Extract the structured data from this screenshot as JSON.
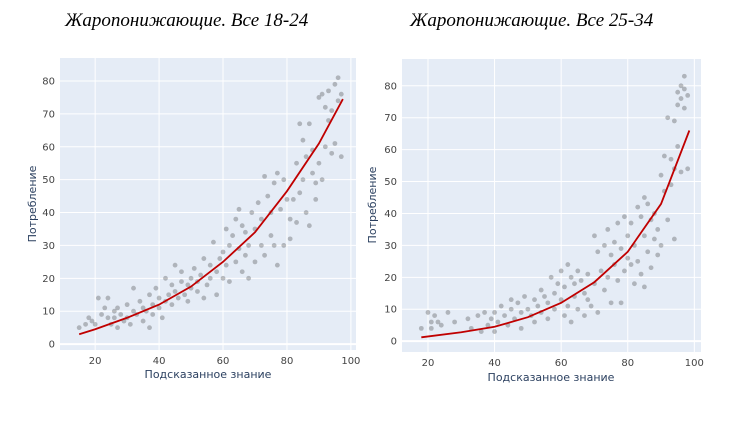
{
  "chart_data": [
    {
      "type": "scatter",
      "title": "Жаропонижающие. Все 18-24",
      "xlabel": "Подсказанное знание",
      "ylabel": "Потребление",
      "xlim": [
        9,
        101.6
      ],
      "ylim": [
        -1.8,
        87
      ],
      "xticks": [
        20,
        40,
        60,
        80,
        100
      ],
      "yticks": [
        0,
        10,
        20,
        30,
        40,
        50,
        60,
        70,
        80
      ],
      "grid": true,
      "colors": {
        "points": "#333333",
        "fit": "#c00000",
        "background": "#e5ecf6"
      },
      "points": [
        [
          15,
          5
        ],
        [
          17,
          6
        ],
        [
          18,
          8
        ],
        [
          19,
          7
        ],
        [
          20,
          6
        ],
        [
          21,
          14
        ],
        [
          22,
          9
        ],
        [
          23,
          11
        ],
        [
          24,
          8
        ],
        [
          24,
          14
        ],
        [
          25,
          6
        ],
        [
          26,
          10
        ],
        [
          26,
          8
        ],
        [
          27,
          5
        ],
        [
          27,
          11
        ],
        [
          28,
          9
        ],
        [
          29,
          7
        ],
        [
          30,
          12
        ],
        [
          30,
          8
        ],
        [
          31,
          6
        ],
        [
          32,
          10
        ],
        [
          32,
          17
        ],
        [
          33,
          9
        ],
        [
          34,
          13
        ],
        [
          35,
          7
        ],
        [
          35,
          11
        ],
        [
          36,
          10
        ],
        [
          37,
          15
        ],
        [
          37,
          5
        ],
        [
          38,
          9
        ],
        [
          38,
          12
        ],
        [
          39,
          17
        ],
        [
          40,
          11
        ],
        [
          40,
          14
        ],
        [
          41,
          8
        ],
        [
          42,
          20
        ],
        [
          42,
          13
        ],
        [
          43,
          15
        ],
        [
          44,
          12
        ],
        [
          44,
          18
        ],
        [
          45,
          24
        ],
        [
          45,
          16
        ],
        [
          46,
          14
        ],
        [
          47,
          19
        ],
        [
          47,
          22
        ],
        [
          48,
          15
        ],
        [
          49,
          18
        ],
        [
          49,
          13
        ],
        [
          50,
          20
        ],
        [
          50,
          17
        ],
        [
          51,
          23
        ],
        [
          52,
          16
        ],
        [
          52,
          19
        ],
        [
          53,
          21
        ],
        [
          54,
          14
        ],
        [
          54,
          26
        ],
        [
          55,
          18
        ],
        [
          56,
          24
        ],
        [
          56,
          20
        ],
        [
          57,
          31
        ],
        [
          58,
          22
        ],
        [
          58,
          15
        ],
        [
          59,
          26
        ],
        [
          60,
          28
        ],
        [
          60,
          20
        ],
        [
          61,
          35
        ],
        [
          61,
          24
        ],
        [
          62,
          30
        ],
        [
          62,
          19
        ],
        [
          63,
          33
        ],
        [
          64,
          25
        ],
        [
          64,
          38
        ],
        [
          65,
          41
        ],
        [
          65,
          29
        ],
        [
          66,
          22
        ],
        [
          66,
          36
        ],
        [
          67,
          34
        ],
        [
          67,
          27
        ],
        [
          68,
          30
        ],
        [
          68,
          20
        ],
        [
          69,
          40
        ],
        [
          70,
          35
        ],
        [
          70,
          25
        ],
        [
          71,
          43
        ],
        [
          72,
          30
        ],
        [
          72,
          38
        ],
        [
          73,
          51
        ],
        [
          73,
          27
        ],
        [
          74,
          45
        ],
        [
          75,
          33
        ],
        [
          75,
          40
        ],
        [
          76,
          49
        ],
        [
          76,
          30
        ],
        [
          77,
          52
        ],
        [
          77,
          24
        ],
        [
          78,
          41
        ],
        [
          79,
          50
        ],
        [
          79,
          30
        ],
        [
          80,
          44
        ],
        [
          81,
          38
        ],
        [
          81,
          32
        ],
        [
          82,
          44
        ],
        [
          83,
          55
        ],
        [
          83,
          37
        ],
        [
          84,
          67
        ],
        [
          84,
          46
        ],
        [
          85,
          62
        ],
        [
          85,
          50
        ],
        [
          86,
          40
        ],
        [
          86,
          57
        ],
        [
          87,
          67
        ],
        [
          87,
          36
        ],
        [
          88,
          52
        ],
        [
          88,
          59
        ],
        [
          89,
          49
        ],
        [
          89,
          44
        ],
        [
          90,
          75
        ],
        [
          90,
          55
        ],
        [
          91,
          76
        ],
        [
          91,
          50
        ],
        [
          92,
          72
        ],
        [
          92,
          60
        ],
        [
          93,
          77
        ],
        [
          93,
          68
        ],
        [
          94,
          71
        ],
        [
          94,
          58
        ],
        [
          95,
          79
        ],
        [
          95,
          61
        ],
        [
          96,
          81
        ],
        [
          96,
          74
        ],
        [
          97,
          57
        ],
        [
          97,
          76
        ]
      ],
      "fit": [
        [
          15,
          3
        ],
        [
          20,
          4.5
        ],
        [
          30,
          8
        ],
        [
          40,
          12
        ],
        [
          50,
          17.5
        ],
        [
          60,
          25
        ],
        [
          70,
          34
        ],
        [
          80,
          46.5
        ],
        [
          90,
          61
        ],
        [
          97.5,
          74.5
        ]
      ]
    },
    {
      "type": "scatter",
      "title": "Жаропонижающие. Все 25-34",
      "xlabel": "Подсказанное знание",
      "ylabel": "Потребление",
      "xlim": [
        12.2,
        102
      ],
      "ylim": [
        -3.4,
        88.4
      ],
      "xticks": [
        20,
        40,
        60,
        80,
        100
      ],
      "yticks": [
        0,
        10,
        20,
        30,
        40,
        50,
        60,
        70,
        80
      ],
      "grid": true,
      "colors": {
        "points": "#333333",
        "fit": "#c00000",
        "background": "#e5ecf6"
      },
      "points": [
        [
          18,
          4
        ],
        [
          20,
          9
        ],
        [
          21,
          6
        ],
        [
          21,
          4
        ],
        [
          22,
          8
        ],
        [
          23,
          6
        ],
        [
          24,
          5
        ],
        [
          26,
          9
        ],
        [
          28,
          6
        ],
        [
          32,
          7
        ],
        [
          33,
          4
        ],
        [
          35,
          8
        ],
        [
          36,
          3
        ],
        [
          37,
          9
        ],
        [
          38,
          5
        ],
        [
          39,
          7
        ],
        [
          40,
          3
        ],
        [
          40,
          9
        ],
        [
          41,
          6
        ],
        [
          42,
          11
        ],
        [
          43,
          8
        ],
        [
          44,
          5
        ],
        [
          45,
          10
        ],
        [
          45,
          13
        ],
        [
          46,
          7
        ],
        [
          47,
          12
        ],
        [
          48,
          9
        ],
        [
          48,
          4
        ],
        [
          49,
          14
        ],
        [
          50,
          10
        ],
        [
          51,
          8
        ],
        [
          52,
          13
        ],
        [
          52,
          6
        ],
        [
          53,
          11
        ],
        [
          54,
          16
        ],
        [
          54,
          9
        ],
        [
          55,
          14
        ],
        [
          56,
          12
        ],
        [
          56,
          7
        ],
        [
          57,
          20
        ],
        [
          58,
          15
        ],
        [
          58,
          10
        ],
        [
          59,
          18
        ],
        [
          60,
          22
        ],
        [
          60,
          13
        ],
        [
          61,
          8
        ],
        [
          61,
          17
        ],
        [
          62,
          24
        ],
        [
          62,
          11
        ],
        [
          63,
          20
        ],
        [
          63,
          6
        ],
        [
          64,
          18
        ],
        [
          64,
          14
        ],
        [
          65,
          22
        ],
        [
          65,
          10
        ],
        [
          66,
          19
        ],
        [
          67,
          15
        ],
        [
          67,
          8
        ],
        [
          68,
          21
        ],
        [
          68,
          13
        ],
        [
          69,
          11
        ],
        [
          70,
          33
        ],
        [
          70,
          18
        ],
        [
          71,
          28
        ],
        [
          71,
          9
        ],
        [
          72,
          22
        ],
        [
          73,
          30
        ],
        [
          73,
          16
        ],
        [
          74,
          35
        ],
        [
          74,
          20
        ],
        [
          75,
          27
        ],
        [
          75,
          12
        ],
        [
          76,
          31
        ],
        [
          76,
          24
        ],
        [
          77,
          37
        ],
        [
          77,
          19
        ],
        [
          78,
          29
        ],
        [
          78,
          12
        ],
        [
          79,
          39
        ],
        [
          79,
          22
        ],
        [
          80,
          33
        ],
        [
          80,
          26
        ],
        [
          81,
          24
        ],
        [
          81,
          37
        ],
        [
          82,
          18
        ],
        [
          82,
          30
        ],
        [
          83,
          42
        ],
        [
          83,
          25
        ],
        [
          84,
          39
        ],
        [
          84,
          21
        ],
        [
          85,
          45
        ],
        [
          85,
          33
        ],
        [
          85,
          17
        ],
        [
          86,
          43
        ],
        [
          86,
          28
        ],
        [
          87,
          38
        ],
        [
          87,
          23
        ],
        [
          88,
          40
        ],
        [
          88,
          32
        ],
        [
          89,
          35
        ],
        [
          89,
          27
        ],
        [
          90,
          52
        ],
        [
          90,
          30
        ],
        [
          91,
          47
        ],
        [
          91,
          58
        ],
        [
          92,
          70
        ],
        [
          92,
          38
        ],
        [
          93,
          49
        ],
        [
          93,
          57
        ],
        [
          94,
          69
        ],
        [
          94,
          32
        ],
        [
          94,
          54
        ],
        [
          95,
          61
        ],
        [
          95,
          78
        ],
        [
          95,
          74
        ],
        [
          96,
          76
        ],
        [
          96,
          80
        ],
        [
          96,
          53
        ],
        [
          97,
          83
        ],
        [
          97,
          79
        ],
        [
          97,
          73
        ],
        [
          98,
          77
        ],
        [
          98,
          54
        ]
      ],
      "fit": [
        [
          18,
          1.2
        ],
        [
          30,
          2.8
        ],
        [
          40,
          4.5
        ],
        [
          50,
          7.5
        ],
        [
          60,
          12
        ],
        [
          70,
          18.5
        ],
        [
          80,
          28
        ],
        [
          90,
          43
        ],
        [
          98.5,
          66
        ]
      ]
    }
  ]
}
